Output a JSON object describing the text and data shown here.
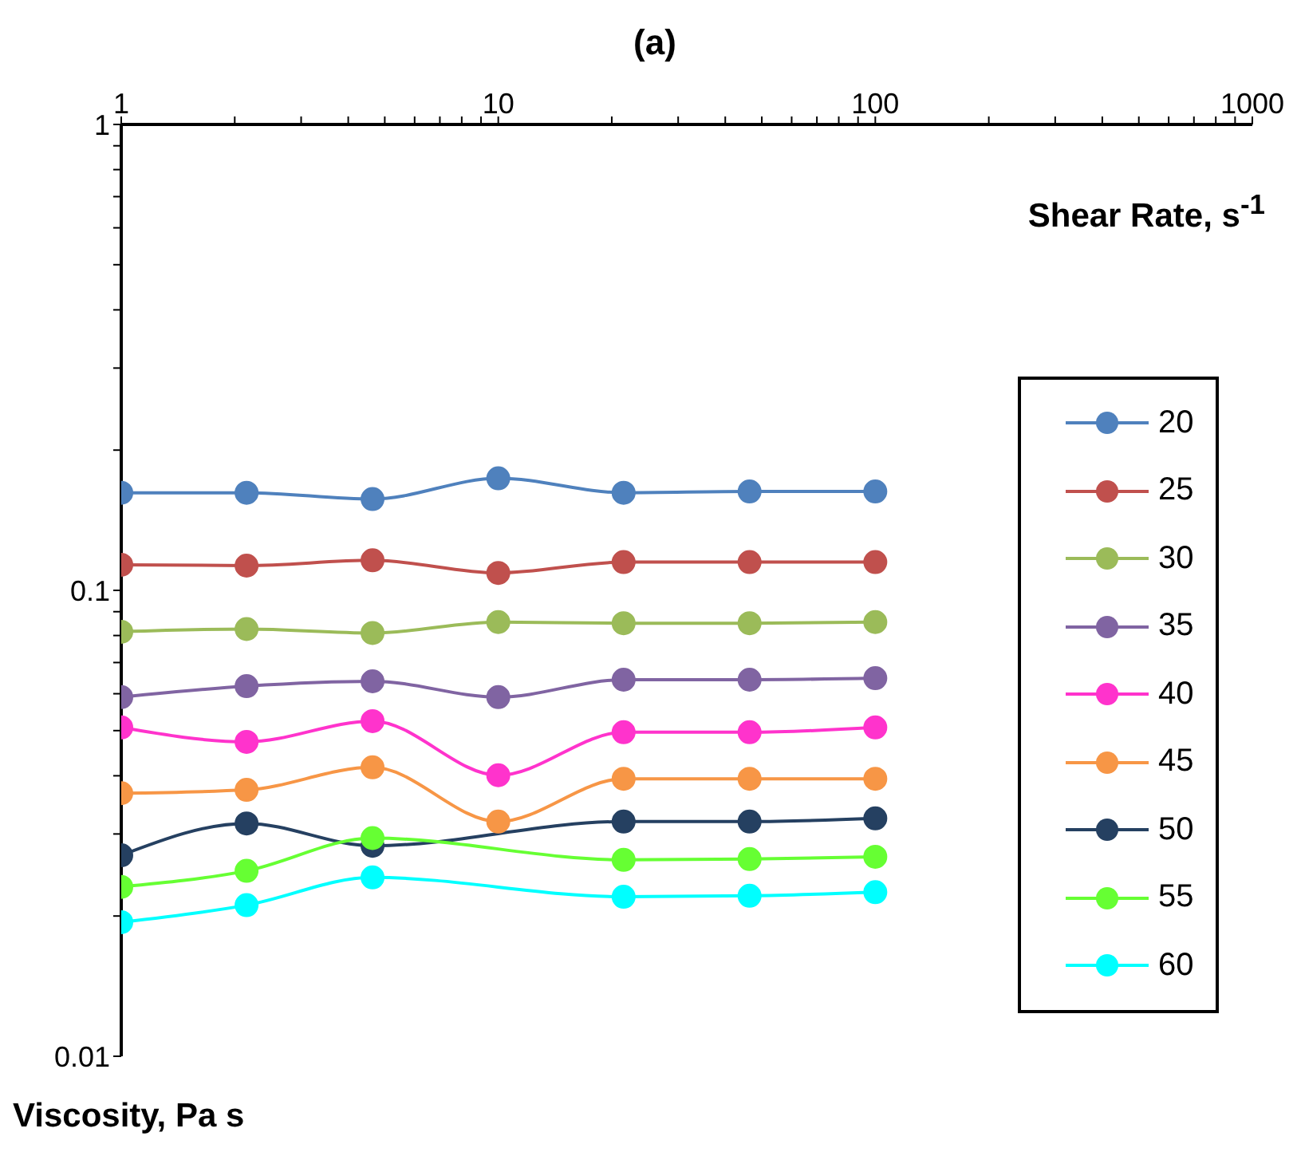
{
  "chart_data": {
    "type": "line",
    "title": "(a)",
    "xlabel": "Shear Rate, s$^{-1}$",
    "ylabel": "Viscosity, Pa s",
    "x": [
      1,
      2.15,
      4.64,
      10,
      21.5,
      46.4,
      100
    ],
    "series": [
      {
        "name": "20",
        "color": "#4f81bd",
        "values": [
          0.162,
          0.162,
          0.157,
          0.174,
          0.162,
          0.163,
          0.163
        ]
      },
      {
        "name": "25",
        "color": "#c0504d",
        "values": [
          0.1135,
          0.113,
          0.116,
          0.109,
          0.115,
          0.115,
          0.115
        ]
      },
      {
        "name": "30",
        "color": "#9bbb59",
        "values": [
          0.0815,
          0.0826,
          0.081,
          0.0855,
          0.085,
          0.085,
          0.0855
        ]
      },
      {
        "name": "35",
        "color": "#8064a2",
        "values": [
          0.059,
          0.0623,
          0.0638,
          0.059,
          0.0643,
          0.0643,
          0.0648
        ]
      },
      {
        "name": "40",
        "color": "#ff33cc",
        "values": [
          0.0508,
          0.0473,
          0.0524,
          0.0401,
          0.0496,
          0.0496,
          0.0508
        ]
      },
      {
        "name": "45",
        "color": "#f79646",
        "values": [
          0.0367,
          0.0373,
          0.0417,
          0.0319,
          0.0394,
          0.0394,
          0.0394
        ]
      },
      {
        "name": "50",
        "color": "#254061",
        "values": [
          0.027,
          0.0316,
          0.0283,
          null,
          0.0319,
          0.0319,
          0.0324
        ]
      },
      {
        "name": "55",
        "color": "#66ff33",
        "values": [
          0.0231,
          0.025,
          0.0294,
          null,
          0.0264,
          0.0265,
          0.0268
        ]
      },
      {
        "name": "60",
        "color": "#00ffff",
        "values": [
          0.0194,
          0.0211,
          0.0242,
          null,
          0.022,
          0.0221,
          0.0225
        ]
      }
    ],
    "log": "xy",
    "xlim": [
      1,
      1000
    ],
    "ylim": [
      0.01,
      1
    ],
    "xticks": [
      1,
      {
        "value": 2,
        "label": null
      },
      {
        "value": 3,
        "label": null
      },
      {
        "value": 4,
        "label": null
      },
      {
        "value": 5,
        "label": null
      },
      {
        "value": 6,
        "label": null
      },
      {
        "value": 7,
        "label": null
      },
      {
        "value": 8,
        "label": null
      },
      {
        "value": 9,
        "label": null
      },
      10,
      {
        "value": 20,
        "label": null
      },
      {
        "value": 30,
        "label": null
      },
      {
        "value": 40,
        "label": null
      },
      {
        "value": 50,
        "label": null
      },
      {
        "value": 60,
        "label": null
      },
      {
        "value": 70,
        "label": null
      },
      {
        "value": 80,
        "label": null
      },
      {
        "value": 90,
        "label": null
      },
      100,
      {
        "value": 200,
        "label": null
      },
      {
        "value": 300,
        "label": null
      },
      {
        "value": 400,
        "label": null
      },
      {
        "value": 500,
        "label": null
      },
      {
        "value": 600,
        "label": null
      },
      {
        "value": 700,
        "label": null
      },
      {
        "value": 800,
        "label": null
      },
      {
        "value": 900,
        "label": null
      },
      1000
    ],
    "yticks": [
      0.01,
      {
        "value": 0.02,
        "label": null
      },
      {
        "value": 0.03,
        "label": null
      },
      {
        "value": 0.04,
        "label": null
      },
      {
        "value": 0.05,
        "label": null
      },
      {
        "value": 0.06,
        "label": null
      },
      {
        "value": 0.07,
        "label": null
      },
      {
        "value": 0.08,
        "label": null
      },
      {
        "value": 0.09,
        "label": null
      },
      0.1,
      {
        "value": 0.2,
        "label": null
      },
      {
        "value": 0.3,
        "label": null
      },
      {
        "value": 0.4,
        "label": null
      },
      {
        "value": 0.5,
        "label": null
      },
      {
        "value": 0.6,
        "label": null
      },
      {
        "value": 0.7,
        "label": null
      },
      {
        "value": 0.8,
        "label": null
      },
      {
        "value": 0.9,
        "label": null
      },
      1
    ],
    "marker": "circle",
    "line_style": "solid",
    "grid": false,
    "legend": "right"
  }
}
